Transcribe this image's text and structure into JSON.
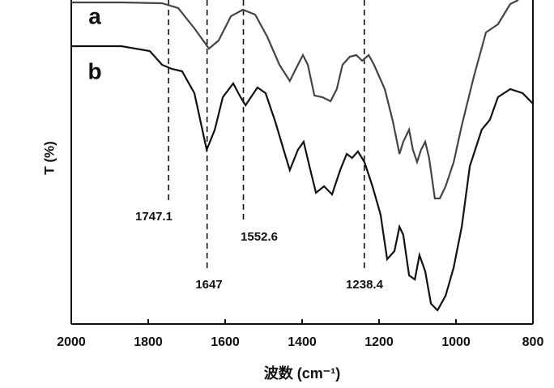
{
  "chart_data": {
    "type": "line",
    "ylabel": "T (%)",
    "xlabel": "波数 (cm⁻¹)",
    "xlim": [
      2000,
      800
    ],
    "xticks": [
      2000,
      1800,
      1600,
      1400,
      1200,
      1000,
      800
    ],
    "ylim": [
      0,
      100
    ],
    "series": [
      {
        "name": "a",
        "color": "#444444",
        "x": [
          2000,
          1870,
          1764,
          1722,
          1680,
          1642,
          1617,
          1585,
          1554,
          1522,
          1491,
          1459,
          1432,
          1411,
          1398,
          1385,
          1368,
          1347,
          1326,
          1310,
          1295,
          1276,
          1259,
          1244,
          1227,
          1213,
          1185,
          1164,
          1147,
          1137,
          1122,
          1112,
          1101,
          1091,
          1080,
          1070,
          1055,
          1042,
          1027,
          1006,
          985,
          954,
          922,
          891,
          859,
          838
        ],
        "values": [
          99.25,
          99.25,
          99,
          97.5,
          91.25,
          85,
          87.5,
          95,
          97,
          95.5,
          88.75,
          80,
          75,
          80,
          83,
          80,
          70.5,
          70,
          68.75,
          72.5,
          80,
          82.5,
          83,
          81.25,
          83,
          80,
          72.5,
          62.5,
          52.5,
          56.25,
          60,
          53.75,
          50,
          53.75,
          56.25,
          51.25,
          38.75,
          38.75,
          42.5,
          50,
          61.25,
          76.25,
          90,
          92.5,
          98.75,
          100
        ]
      },
      {
        "name": "b",
        "color": "#111111",
        "x": [
          2000,
          1870,
          1796,
          1764,
          1739,
          1712,
          1680,
          1648,
          1627,
          1606,
          1579,
          1560,
          1547,
          1533,
          1516,
          1495,
          1470,
          1448,
          1432,
          1411,
          1396,
          1381,
          1364,
          1343,
          1322,
          1301,
          1284,
          1270,
          1255,
          1238,
          1217,
          1196,
          1179,
          1160,
          1147,
          1137,
          1122,
          1107,
          1095,
          1080,
          1065,
          1048,
          1027,
          1006,
          985,
          964,
          933,
          912,
          891,
          859,
          827,
          800
        ],
        "values": [
          85.75,
          85.75,
          84.25,
          80,
          78.75,
          78,
          71.25,
          53.75,
          60,
          70,
          74.25,
          70,
          67.5,
          70,
          73,
          71.25,
          62.5,
          53.75,
          47.5,
          53.75,
          56.25,
          48.75,
          40.5,
          42.5,
          40,
          47.5,
          52.5,
          51.25,
          53.25,
          50,
          42.5,
          33.75,
          20,
          22.5,
          30,
          27.5,
          15,
          13.75,
          21.25,
          16.25,
          6.25,
          4.25,
          8.75,
          17.5,
          30,
          48.75,
          60,
          63,
          70,
          72.5,
          71.25,
          68
        ]
      }
    ],
    "annotations": [
      {
        "x": 1747.1
      },
      {
        "x": 1647
      },
      {
        "x": 1552.6
      },
      {
        "x": 1238.4
      }
    ]
  }
}
